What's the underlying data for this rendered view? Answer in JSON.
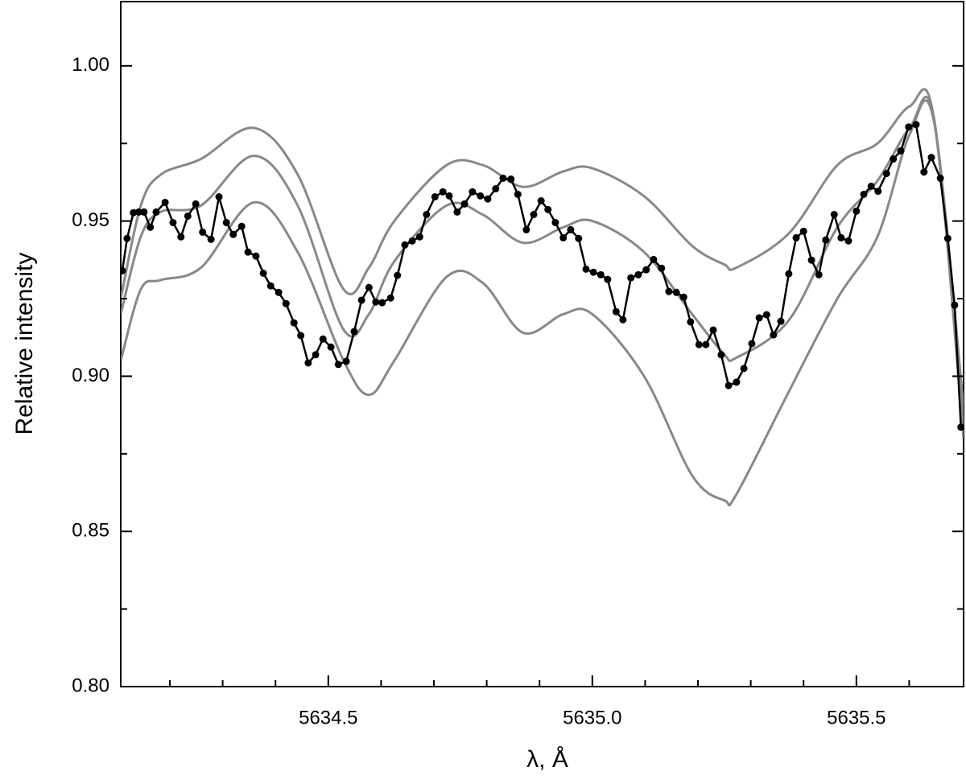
{
  "chart_data": {
    "type": "line",
    "xlabel": "λ, Å",
    "ylabel": "Relative intensity",
    "xlim": [
      5634.107,
      5635.703
    ],
    "ylim": [
      0.8,
      1.0207
    ],
    "xticks": [
      {
        "value": 5634.5,
        "label": "5634.5"
      },
      {
        "value": 5635.0,
        "label": "5635.0"
      },
      {
        "value": 5635.5,
        "label": "5635.5"
      }
    ],
    "xminorticks": [
      5634.2,
      5634.3,
      5634.4,
      5634.6,
      5634.7,
      5634.8,
      5634.9,
      5635.1,
      5635.2,
      5635.3,
      5635.4,
      5635.6
    ],
    "yticks": [
      {
        "value": 0.8,
        "label": "0.80"
      },
      {
        "value": 0.85,
        "label": "0.85"
      },
      {
        "value": 0.9,
        "label": "0.90"
      },
      {
        "value": 0.95,
        "label": "0.95"
      },
      {
        "value": 1.0,
        "label": "1.00"
      }
    ],
    "yminorticks": [
      0.825,
      0.875,
      0.925,
      0.975
    ],
    "series": [
      {
        "color": "#888888",
        "markers": false,
        "x": [
          5634.107,
          5634.145,
          5634.183,
          5634.259,
          5634.359,
          5634.442,
          5634.529,
          5634.577,
          5634.625,
          5634.724,
          5634.793,
          5634.869,
          5634.945,
          5635.0,
          5635.098,
          5635.189,
          5635.25,
          5635.273,
          5635.372,
          5635.464,
          5635.54,
          5635.601,
          5635.647,
          5635.703
        ],
        "values": [
          0.925,
          0.955,
          0.965,
          0.97,
          0.98,
          0.965,
          0.928,
          0.935,
          0.95,
          0.968,
          0.968,
          0.961,
          0.966,
          0.967,
          0.958,
          0.942,
          0.936,
          0.935,
          0.946,
          0.968,
          0.975,
          0.987,
          0.983,
          0.88
        ]
      },
      {
        "color": "#888888",
        "markers": false,
        "x": [
          5634.107,
          5634.145,
          5634.183,
          5634.259,
          5634.359,
          5634.442,
          5634.529,
          5634.577,
          5634.625,
          5634.724,
          5634.793,
          5634.869,
          5634.945,
          5635.0,
          5635.098,
          5635.189,
          5635.25,
          5635.273,
          5635.372,
          5635.464,
          5635.54,
          5635.601,
          5635.647,
          5635.703
        ],
        "values": [
          0.92,
          0.945,
          0.953,
          0.955,
          0.971,
          0.955,
          0.915,
          0.92,
          0.937,
          0.955,
          0.952,
          0.943,
          0.948,
          0.95,
          0.94,
          0.92,
          0.907,
          0.906,
          0.918,
          0.948,
          0.963,
          0.98,
          0.983,
          0.885
        ]
      },
      {
        "color": "#888888",
        "markers": false,
        "x": [
          5634.107,
          5634.145,
          5634.183,
          5634.259,
          5634.359,
          5634.442,
          5634.529,
          5634.577,
          5634.625,
          5634.724,
          5634.793,
          5634.869,
          5634.945,
          5635.0,
          5635.098,
          5635.189,
          5635.25,
          5635.273,
          5635.372,
          5635.464,
          5635.54,
          5635.601,
          5635.647,
          5635.703
        ],
        "values": [
          0.905,
          0.928,
          0.931,
          0.935,
          0.956,
          0.94,
          0.905,
          0.894,
          0.905,
          0.932,
          0.93,
          0.914,
          0.92,
          0.92,
          0.9,
          0.868,
          0.86,
          0.862,
          0.895,
          0.925,
          0.945,
          0.978,
          0.982,
          0.89
        ]
      },
      {
        "color": "#000000",
        "markers": true,
        "x": [
          5634.11,
          5634.119,
          5634.131,
          5634.141,
          5634.151,
          5634.163,
          5634.174,
          5634.191,
          5634.206,
          5634.221,
          5634.234,
          5634.249,
          5634.262,
          5634.278,
          5634.293,
          5634.307,
          5634.32,
          5634.336,
          5634.348,
          5634.363,
          5634.377,
          5634.391,
          5634.406,
          5634.42,
          5634.435,
          5634.448,
          5634.462,
          5634.476,
          5634.49,
          5634.505,
          5634.519,
          5634.534,
          5634.549,
          5634.563,
          5634.577,
          5634.59,
          5634.602,
          5634.618,
          5634.631,
          5634.645,
          5634.659,
          5634.673,
          5634.686,
          5634.702,
          5634.717,
          5634.729,
          5634.744,
          5634.758,
          5634.773,
          5634.788,
          5634.802,
          5634.817,
          5634.831,
          5634.846,
          5634.859,
          5634.875,
          5634.889,
          5634.903,
          5634.916,
          5634.93,
          5634.945,
          5634.959,
          5634.974,
          5634.988,
          5635.002,
          5635.016,
          5635.029,
          5635.045,
          5635.058,
          5635.073,
          5635.087,
          5635.102,
          5635.116,
          5635.131,
          5635.145,
          5635.159,
          5635.173,
          5635.186,
          5635.202,
          5635.215,
          5635.229,
          5635.244,
          5635.258,
          5635.273,
          5635.287,
          5635.302,
          5635.316,
          5635.33,
          5635.343,
          5635.357,
          5635.372,
          5635.386,
          5635.4,
          5635.415,
          5635.429,
          5635.442,
          5635.458,
          5635.471,
          5635.485,
          5635.5,
          5635.514,
          5635.528,
          5635.541,
          5635.557,
          5635.57,
          5635.584,
          5635.599,
          5635.613,
          5635.628,
          5635.642,
          5635.659,
          5635.673,
          5635.686,
          5635.698
        ],
        "values": [
          0.934,
          0.9444,
          0.9527,
          0.9529,
          0.9529,
          0.948,
          0.9529,
          0.956,
          0.9495,
          0.9449,
          0.9516,
          0.9555,
          0.9464,
          0.9441,
          0.9578,
          0.9495,
          0.9457,
          0.9483,
          0.94,
          0.9387,
          0.9332,
          0.9291,
          0.927,
          0.9234,
          0.9172,
          0.9131,
          0.9043,
          0.9069,
          0.912,
          0.9094,
          0.9038,
          0.9048,
          0.9144,
          0.9245,
          0.9286,
          0.9239,
          0.9237,
          0.9252,
          0.9325,
          0.9423,
          0.9436,
          0.9449,
          0.9521,
          0.9578,
          0.9594,
          0.9581,
          0.9529,
          0.9555,
          0.9594,
          0.9581,
          0.9571,
          0.9604,
          0.9638,
          0.9635,
          0.9586,
          0.9472,
          0.9521,
          0.9565,
          0.9537,
          0.9495,
          0.9446,
          0.9472,
          0.9444,
          0.9345,
          0.9335,
          0.9327,
          0.9312,
          0.9208,
          0.9182,
          0.9317,
          0.9327,
          0.9343,
          0.9376,
          0.9348,
          0.9273,
          0.927,
          0.9255,
          0.9175,
          0.9102,
          0.9102,
          0.9149,
          0.9069,
          0.897,
          0.8981,
          0.9025,
          0.9105,
          0.9188,
          0.9198,
          0.9133,
          0.9177,
          0.933,
          0.9446,
          0.9467,
          0.9374,
          0.9327,
          0.9439,
          0.9521,
          0.9446,
          0.9436,
          0.9532,
          0.9586,
          0.9612,
          0.9596,
          0.9653,
          0.97,
          0.9726,
          0.9803,
          0.9811,
          0.9658,
          0.9705,
          0.9638,
          0.9444,
          0.9229,
          0.8836
        ]
      }
    ]
  }
}
